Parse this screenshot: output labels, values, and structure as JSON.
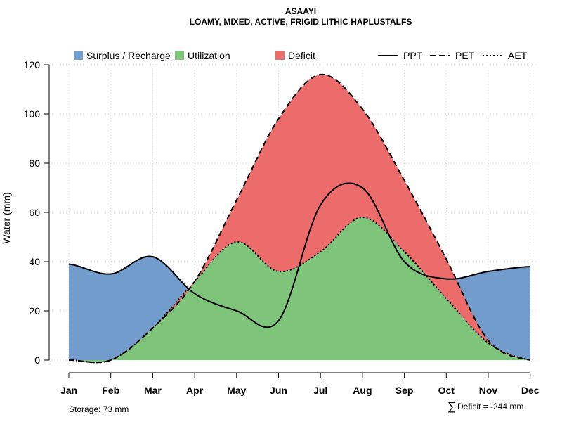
{
  "chart_data": {
    "type": "area",
    "title": "ASAAYI",
    "subtitle": "LOAMY, MIXED, ACTIVE, FRIGID LITHIC HAPLUSTALFS",
    "xlabel": "",
    "ylabel": "Water (mm)",
    "ylim": [
      0,
      120
    ],
    "yticks": [
      0,
      20,
      40,
      60,
      80,
      100,
      120
    ],
    "grid": true,
    "categories": [
      "Jan",
      "Feb",
      "Mar",
      "Apr",
      "May",
      "Jun",
      "Jul",
      "Aug",
      "Sep",
      "Oct",
      "Nov",
      "Dec"
    ],
    "series": [
      {
        "name": "PPT",
        "style": "solid",
        "values": [
          39,
          35,
          42,
          27,
          20,
          16,
          63,
          70,
          40,
          33,
          36,
          38
        ]
      },
      {
        "name": "PET",
        "style": "dashed",
        "values": [
          0,
          0,
          13,
          32,
          65,
          98,
          116,
          102,
          73,
          41,
          8,
          0
        ]
      },
      {
        "name": "AET",
        "style": "dotted",
        "values": [
          0,
          0,
          13,
          32,
          48,
          36,
          44,
          58,
          44,
          25,
          7,
          0
        ]
      }
    ],
    "areas": [
      {
        "name": "Surplus / Recharge",
        "color": "#729ccb",
        "between": [
          "zero",
          "PPT"
        ]
      },
      {
        "name": "Utilization",
        "color": "#7fc47b",
        "between": [
          "zero",
          "AET"
        ]
      },
      {
        "name": "Deficit",
        "color": "#ec6b6b",
        "between": [
          "AET",
          "PET"
        ]
      }
    ],
    "legend": {
      "placement": "top",
      "fills": [
        "Surplus / Recharge",
        "Utilization",
        "Deficit"
      ],
      "lines": [
        "PPT",
        "PET",
        "AET"
      ]
    },
    "annotations": {
      "storage": "Storage: 73 mm",
      "deficit_symbol": "∑",
      "deficit": "Deficit = -244 mm"
    }
  }
}
